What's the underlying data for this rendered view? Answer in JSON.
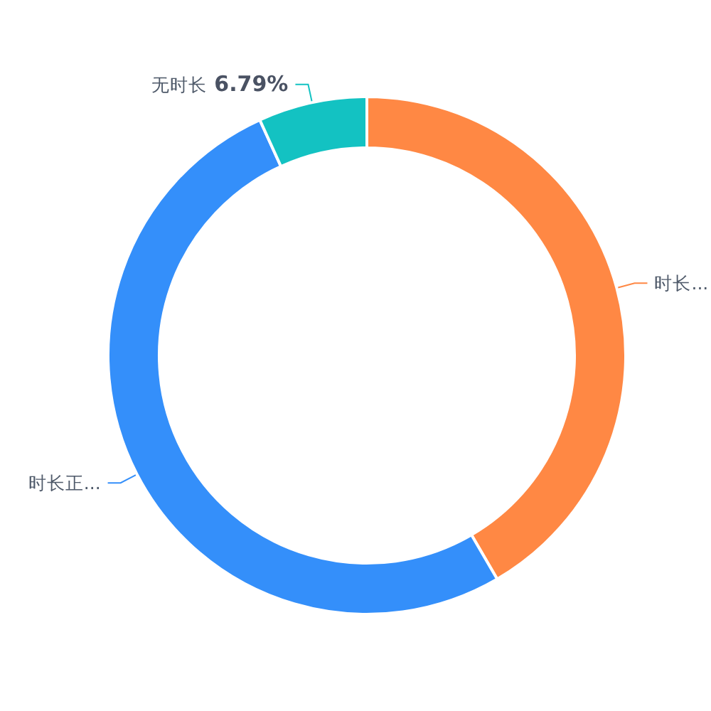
{
  "chart_data": {
    "type": "donut",
    "categories": [
      "时长...",
      "时长正...",
      "无时长"
    ],
    "values": [
      41.6,
      51.61,
      6.79
    ],
    "colors": [
      "#ff8844",
      "#348ffa",
      "#13c2c2"
    ],
    "value_labels": [
      null,
      null,
      "6.79%"
    ]
  }
}
